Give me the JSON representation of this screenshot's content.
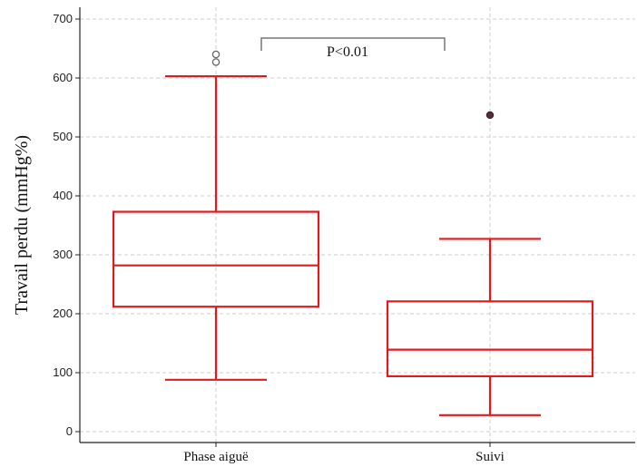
{
  "chart_data": {
    "type": "box",
    "ylabel": "Travail perdu (mmHg%)",
    "ylim": [
      -15,
      710
    ],
    "yticks": [
      0,
      100,
      200,
      300,
      400,
      500,
      600,
      700
    ],
    "grid": true,
    "categories": [
      "Phase aiguë",
      "Suivi"
    ],
    "boxes": [
      {
        "category": "Phase aiguë",
        "whisker_low": 88,
        "q1": 212,
        "median": 282,
        "q3": 373,
        "whisker_high": 603,
        "outliers": [
          {
            "value": 627,
            "style": "open"
          },
          {
            "value": 640,
            "style": "open"
          }
        ]
      },
      {
        "category": "Suivi",
        "whisker_low": 28,
        "q1": 94,
        "median": 139,
        "q3": 221,
        "whisker_high": 327,
        "outliers": [
          {
            "value": 537,
            "style": "filled"
          }
        ]
      }
    ],
    "annotation": {
      "text": "P<0.01"
    },
    "colors": {
      "box": "#e31a1c",
      "grid": "#cccccc",
      "bracket": "#777777",
      "outlier_open": "#666666",
      "outlier_filled": "#5a2a3a"
    }
  }
}
